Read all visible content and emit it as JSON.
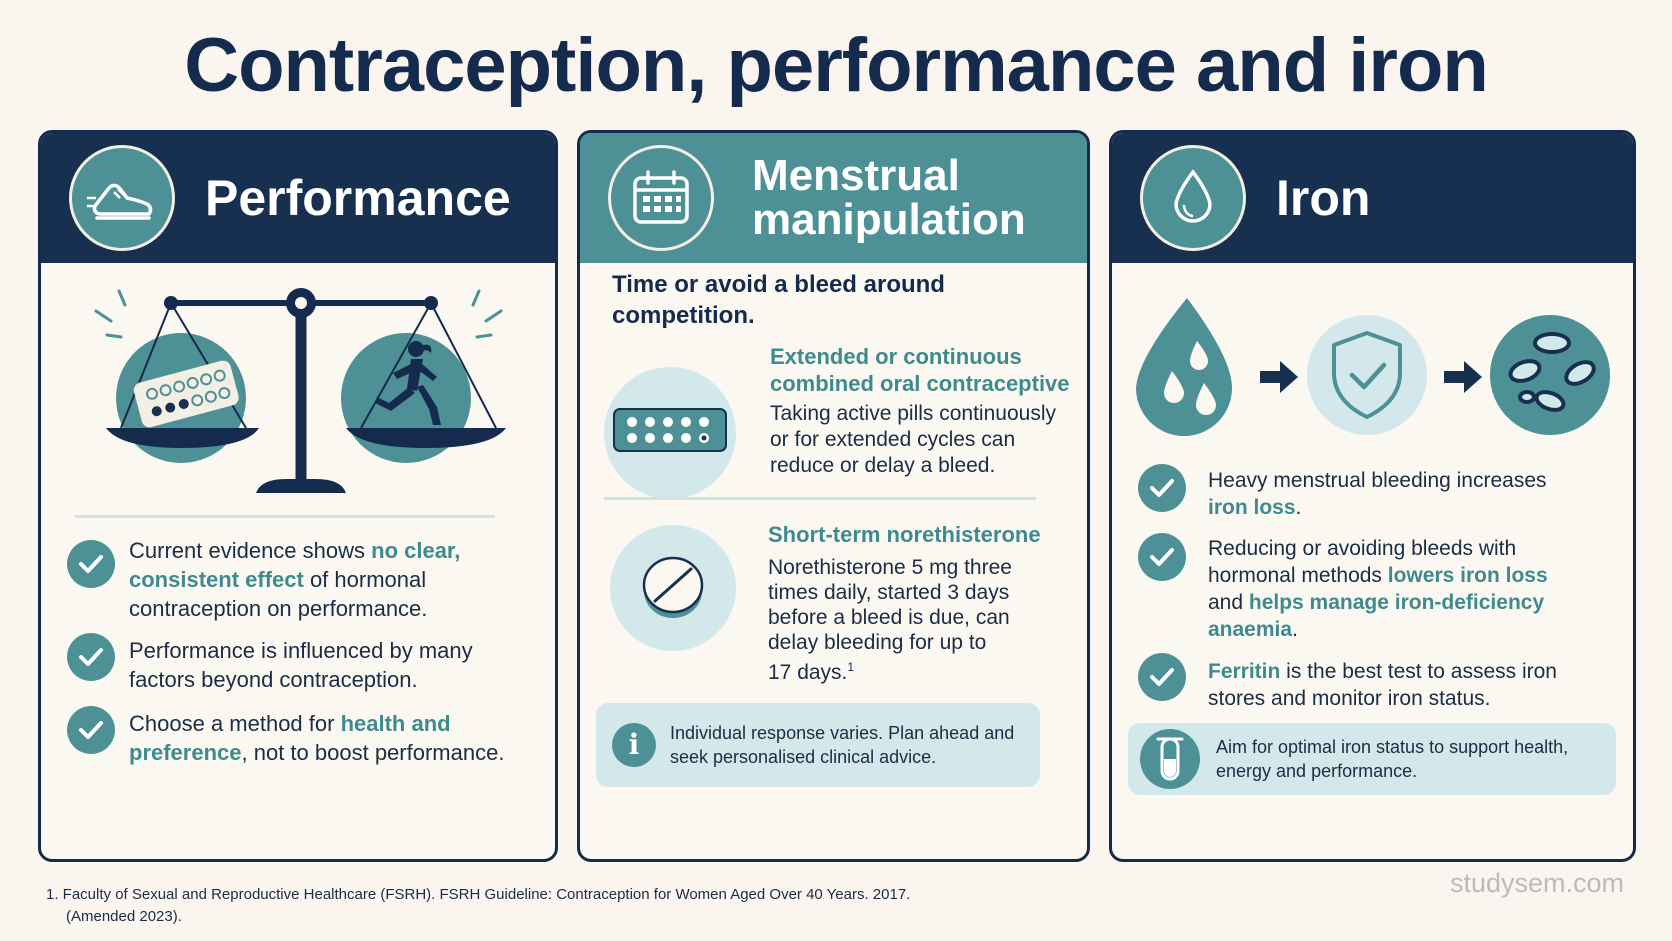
{
  "title": "Contraception, performance and iron",
  "panels": {
    "performance": {
      "icon": "running-shoe-icon",
      "title": "Performance",
      "bullets": [
        {
          "pre": "Current evidence shows ",
          "hl": "no clear, consistent effect",
          "post": " of hormonal contraception on performance."
        },
        {
          "text": "Performance is influenced by many factors beyond contraception."
        },
        {
          "pre": "Choose a method for ",
          "hl": "health and preference",
          "post": ", not to boost performance."
        }
      ]
    },
    "menstrual": {
      "icon": "calendar-icon",
      "title_line1": "Menstrual",
      "title_line2": "manipulation",
      "intro": "Time or avoid a bleed around competition.",
      "item1": {
        "heading": "Extended or continuous combined oral contraceptive",
        "text": "Taking active pills continuously or for extended cycles can reduce or delay a bleed."
      },
      "item2": {
        "heading": "Short-term norethisterone",
        "text_line1": "Norethisterone 5 mg three",
        "text_line2": "times daily, started 3 days",
        "text_line3": "before a bleed is due, can",
        "text_line4": "delay bleeding for up to",
        "text_line5": "17 days.",
        "superscript": "1"
      },
      "note": "Individual response varies. Plan ahead and seek personalised clinical advice."
    },
    "iron": {
      "icon": "drop-icon",
      "title": "Iron",
      "bullets": [
        {
          "pre": "Heavy menstrual bleeding increases ",
          "hl": "iron loss",
          "post": "."
        },
        {
          "pre": "Reducing or avoiding bleeds with hormonal methods ",
          "hl": "lowers iron loss",
          "mid": " and ",
          "hl2": "helps manage iron-deficiency anaemia",
          "post": "."
        },
        {
          "hl": "Ferritin",
          "post": " is the best test to assess iron stores and monitor iron status."
        }
      ],
      "note": "Aim for optimal iron status to support health, energy and performance."
    }
  },
  "footnote_line1": "1.  Faculty of Sexual and Reproductive Healthcare (FSRH). FSRH Guideline: Contraception for Women Aged Over 40 Years. 2017.",
  "footnote_line2": "(Amended 2023).",
  "brand": "studysem.com",
  "colors": {
    "navy": "#152b4e",
    "teal": "#4d9196",
    "light_teal": "#d3e8ea",
    "highlight": "#3f8a8e",
    "background": "#faf6ef"
  }
}
